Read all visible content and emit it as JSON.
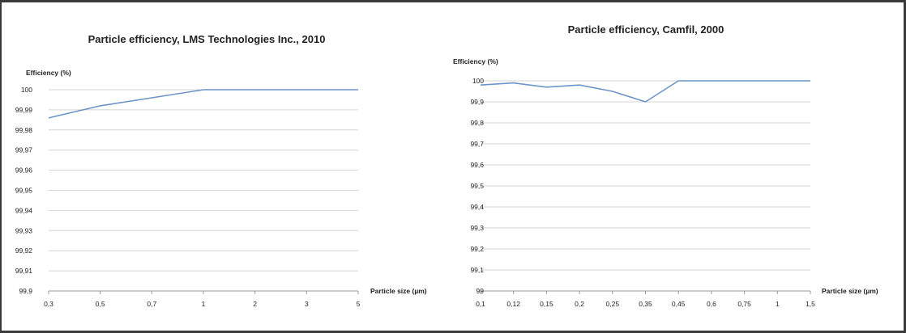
{
  "chart_data": [
    {
      "type": "line",
      "title": "Particle efficiency, LMS Technologies Inc., 2010",
      "ylabel": "Efficiency (%)",
      "xlabel": "Particle size (µm)",
      "categories": [
        "0,3",
        "0,5",
        "0,7",
        "1",
        "2",
        "3",
        "5"
      ],
      "y_ticks": [
        "100",
        "99,99",
        "99,98",
        "99,97",
        "99,96",
        "99,95",
        "99,94",
        "99,93",
        "99,92",
        "99,91",
        "99,9"
      ],
      "ylim": [
        99.9,
        100
      ],
      "grid": true,
      "line_color": "#6c95c8",
      "series": [
        {
          "values": [
            99.986,
            99.992,
            99.996,
            100,
            100,
            100,
            100
          ]
        }
      ]
    },
    {
      "type": "line",
      "title": "Particle efficiency, Camfil, 2000",
      "ylabel": "Efficiency (%)",
      "xlabel": "Particle size (µm)",
      "categories": [
        "0,1",
        "0,12",
        "0,15",
        "0,2",
        "0,25",
        "0,35",
        "0,45",
        "0,6",
        "0,75",
        "1",
        "1,5"
      ],
      "y_ticks": [
        "100",
        "99,9",
        "99,8",
        "99,7",
        "99,6",
        "99,5",
        "99,4",
        "99,3",
        "99,2",
        "99,1",
        "99"
      ],
      "ylim": [
        99,
        100
      ],
      "grid": true,
      "line_color": "#6c95c8",
      "series": [
        {
          "values": [
            99.98,
            99.99,
            99.97,
            99.98,
            99.95,
            99.9,
            100,
            100,
            100,
            100,
            100
          ]
        }
      ]
    }
  ]
}
